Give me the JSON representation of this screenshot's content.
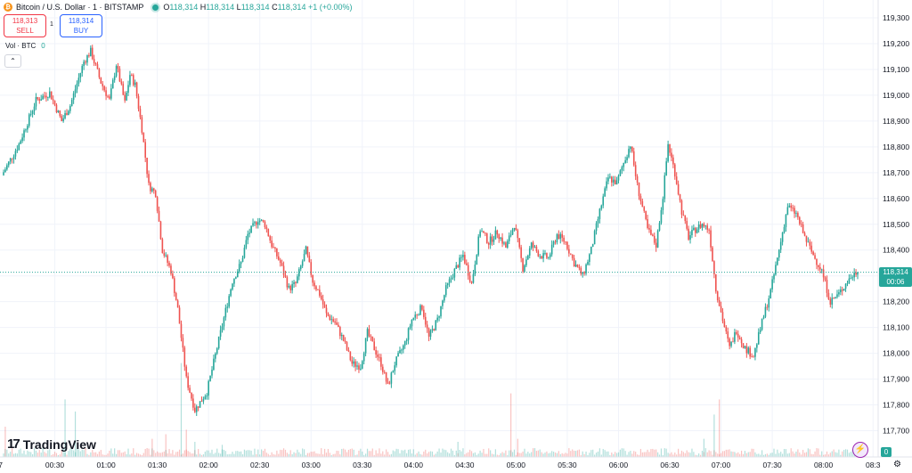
{
  "header": {
    "symbol_title": "Bitcoin / U.S. Dollar · 1 · BITSTAMP",
    "coin_letter": "₿",
    "ohlc": {
      "o_label": "O",
      "o": "118,314",
      "h_label": "H",
      "h": "118,314",
      "l_label": "L",
      "l": "118,314",
      "c_label": "C",
      "c": "118,314",
      "change": "+1 (+0.00%)"
    }
  },
  "trade": {
    "sell_price": "118,313",
    "sell_label": "SELL",
    "spread": "1",
    "buy_price": "118,314",
    "buy_label": "BUY"
  },
  "volume_legend": {
    "label": "Vol · BTC",
    "value": "0"
  },
  "collapse_glyph": "⌃",
  "logo_text": "TradingView",
  "logo_mark": "17",
  "last_price": {
    "value": "118,314",
    "countdown": "00:06"
  },
  "volume_tag": "0",
  "colors": {
    "up": "#26a69a",
    "down": "#ef5350",
    "grid": "#f0f3fa",
    "text": "#131722",
    "bg": "#ffffff"
  },
  "icons": {
    "bolt": "lightning-icon",
    "settings": "gear-icon"
  },
  "chart_data": {
    "type": "candlestick",
    "y_axis": {
      "ylim": [
        117630,
        119340
      ],
      "ticks": [
        119300,
        119200,
        119100,
        119000,
        118900,
        118800,
        118700,
        118600,
        118500,
        118400,
        118300,
        118200,
        118100,
        118000,
        117900,
        117800,
        117700
      ],
      "tick_labels": [
        "119,300",
        "119,200",
        "119,100",
        "119,000",
        "118,900",
        "118,800",
        "118,700",
        "118,600",
        "118,500",
        "118,400",
        "118,300",
        "118,200",
        "118,100",
        "118,000",
        "117,900",
        "117,800",
        "117,700"
      ]
    },
    "x_axis": {
      "tick_labels": [
        "7",
        "00:30",
        "01:00",
        "01:30",
        "02:00",
        "02:30",
        "03:00",
        "03:30",
        "04:00",
        "04:30",
        "05:00",
        "05:30",
        "06:00",
        "06:30",
        "07:00",
        "07:30",
        "08:00",
        "08:3"
      ],
      "tick_minutes": [
        -3,
        30,
        60,
        90,
        120,
        150,
        180,
        210,
        240,
        270,
        300,
        330,
        360,
        390,
        420,
        450,
        480,
        509
      ]
    },
    "last_close": 118314,
    "price_path_minutes": [
      0,
      10,
      20,
      28,
      35,
      40,
      48,
      52,
      58,
      63,
      67,
      72,
      75,
      78,
      82,
      86,
      90,
      94,
      99,
      103,
      108,
      113,
      120,
      128,
      135,
      140,
      144,
      150,
      154,
      158,
      163,
      168,
      172,
      178,
      182,
      186,
      190,
      195,
      200,
      205,
      210,
      214,
      218,
      222,
      226,
      230,
      236,
      240,
      246,
      250,
      255,
      260,
      265,
      270,
      275,
      280,
      285,
      290,
      295,
      300,
      305,
      310,
      315,
      320,
      325,
      330,
      335,
      340,
      345,
      350,
      355,
      360,
      363,
      368,
      372,
      378,
      383,
      387,
      390,
      394,
      398,
      402,
      406,
      410,
      414,
      418,
      422,
      426,
      430,
      435,
      440,
      445,
      450,
      455,
      460,
      465,
      470,
      475,
      480,
      485,
      490,
      495,
      500
    ],
    "price_path_values": [
      118690,
      118810,
      118980,
      119010,
      118900,
      118960,
      119130,
      119170,
      119050,
      118980,
      119120,
      118970,
      119080,
      119040,
      118870,
      118650,
      118620,
      118400,
      118320,
      118170,
      117900,
      117780,
      117850,
      118080,
      118280,
      118350,
      118460,
      118520,
      118500,
      118420,
      118350,
      118250,
      118270,
      118400,
      118280,
      118230,
      118150,
      118120,
      118050,
      117960,
      117950,
      118080,
      118020,
      117960,
      117870,
      117960,
      118040,
      118130,
      118180,
      118060,
      118130,
      118250,
      118320,
      118380,
      118270,
      118480,
      118430,
      118470,
      118410,
      118500,
      118330,
      118420,
      118380,
      118370,
      118460,
      118430,
      118350,
      118300,
      118400,
      118550,
      118680,
      118660,
      118720,
      118810,
      118650,
      118480,
      118420,
      118610,
      118810,
      118700,
      118550,
      118450,
      118480,
      118500,
      118480,
      118250,
      118130,
      118020,
      118090,
      118020,
      117990,
      118120,
      118240,
      118400,
      118570,
      118540,
      118450,
      118380,
      118320,
      118200,
      118230,
      118280,
      118314
    ],
    "volume_spikes": [
      {
        "minute": 1,
        "volume": 0.2
      },
      {
        "minute": 36,
        "volume": 0.38
      },
      {
        "minute": 42,
        "volume": 0.3
      },
      {
        "minute": 87,
        "volume": 0.12
      },
      {
        "minute": 95,
        "volume": 0.15
      },
      {
        "minute": 104,
        "volume": 0.62
      },
      {
        "minute": 107,
        "volume": 0.18
      },
      {
        "minute": 112,
        "volume": 0.1
      },
      {
        "minute": 128,
        "volume": 0.08
      },
      {
        "minute": 266,
        "volume": 0.1
      },
      {
        "minute": 297,
        "volume": 0.42
      },
      {
        "minute": 301,
        "volume": 0.12
      },
      {
        "minute": 410,
        "volume": 0.12
      },
      {
        "minute": 416,
        "volume": 0.28
      },
      {
        "minute": 419,
        "volume": 0.38
      }
    ]
  }
}
